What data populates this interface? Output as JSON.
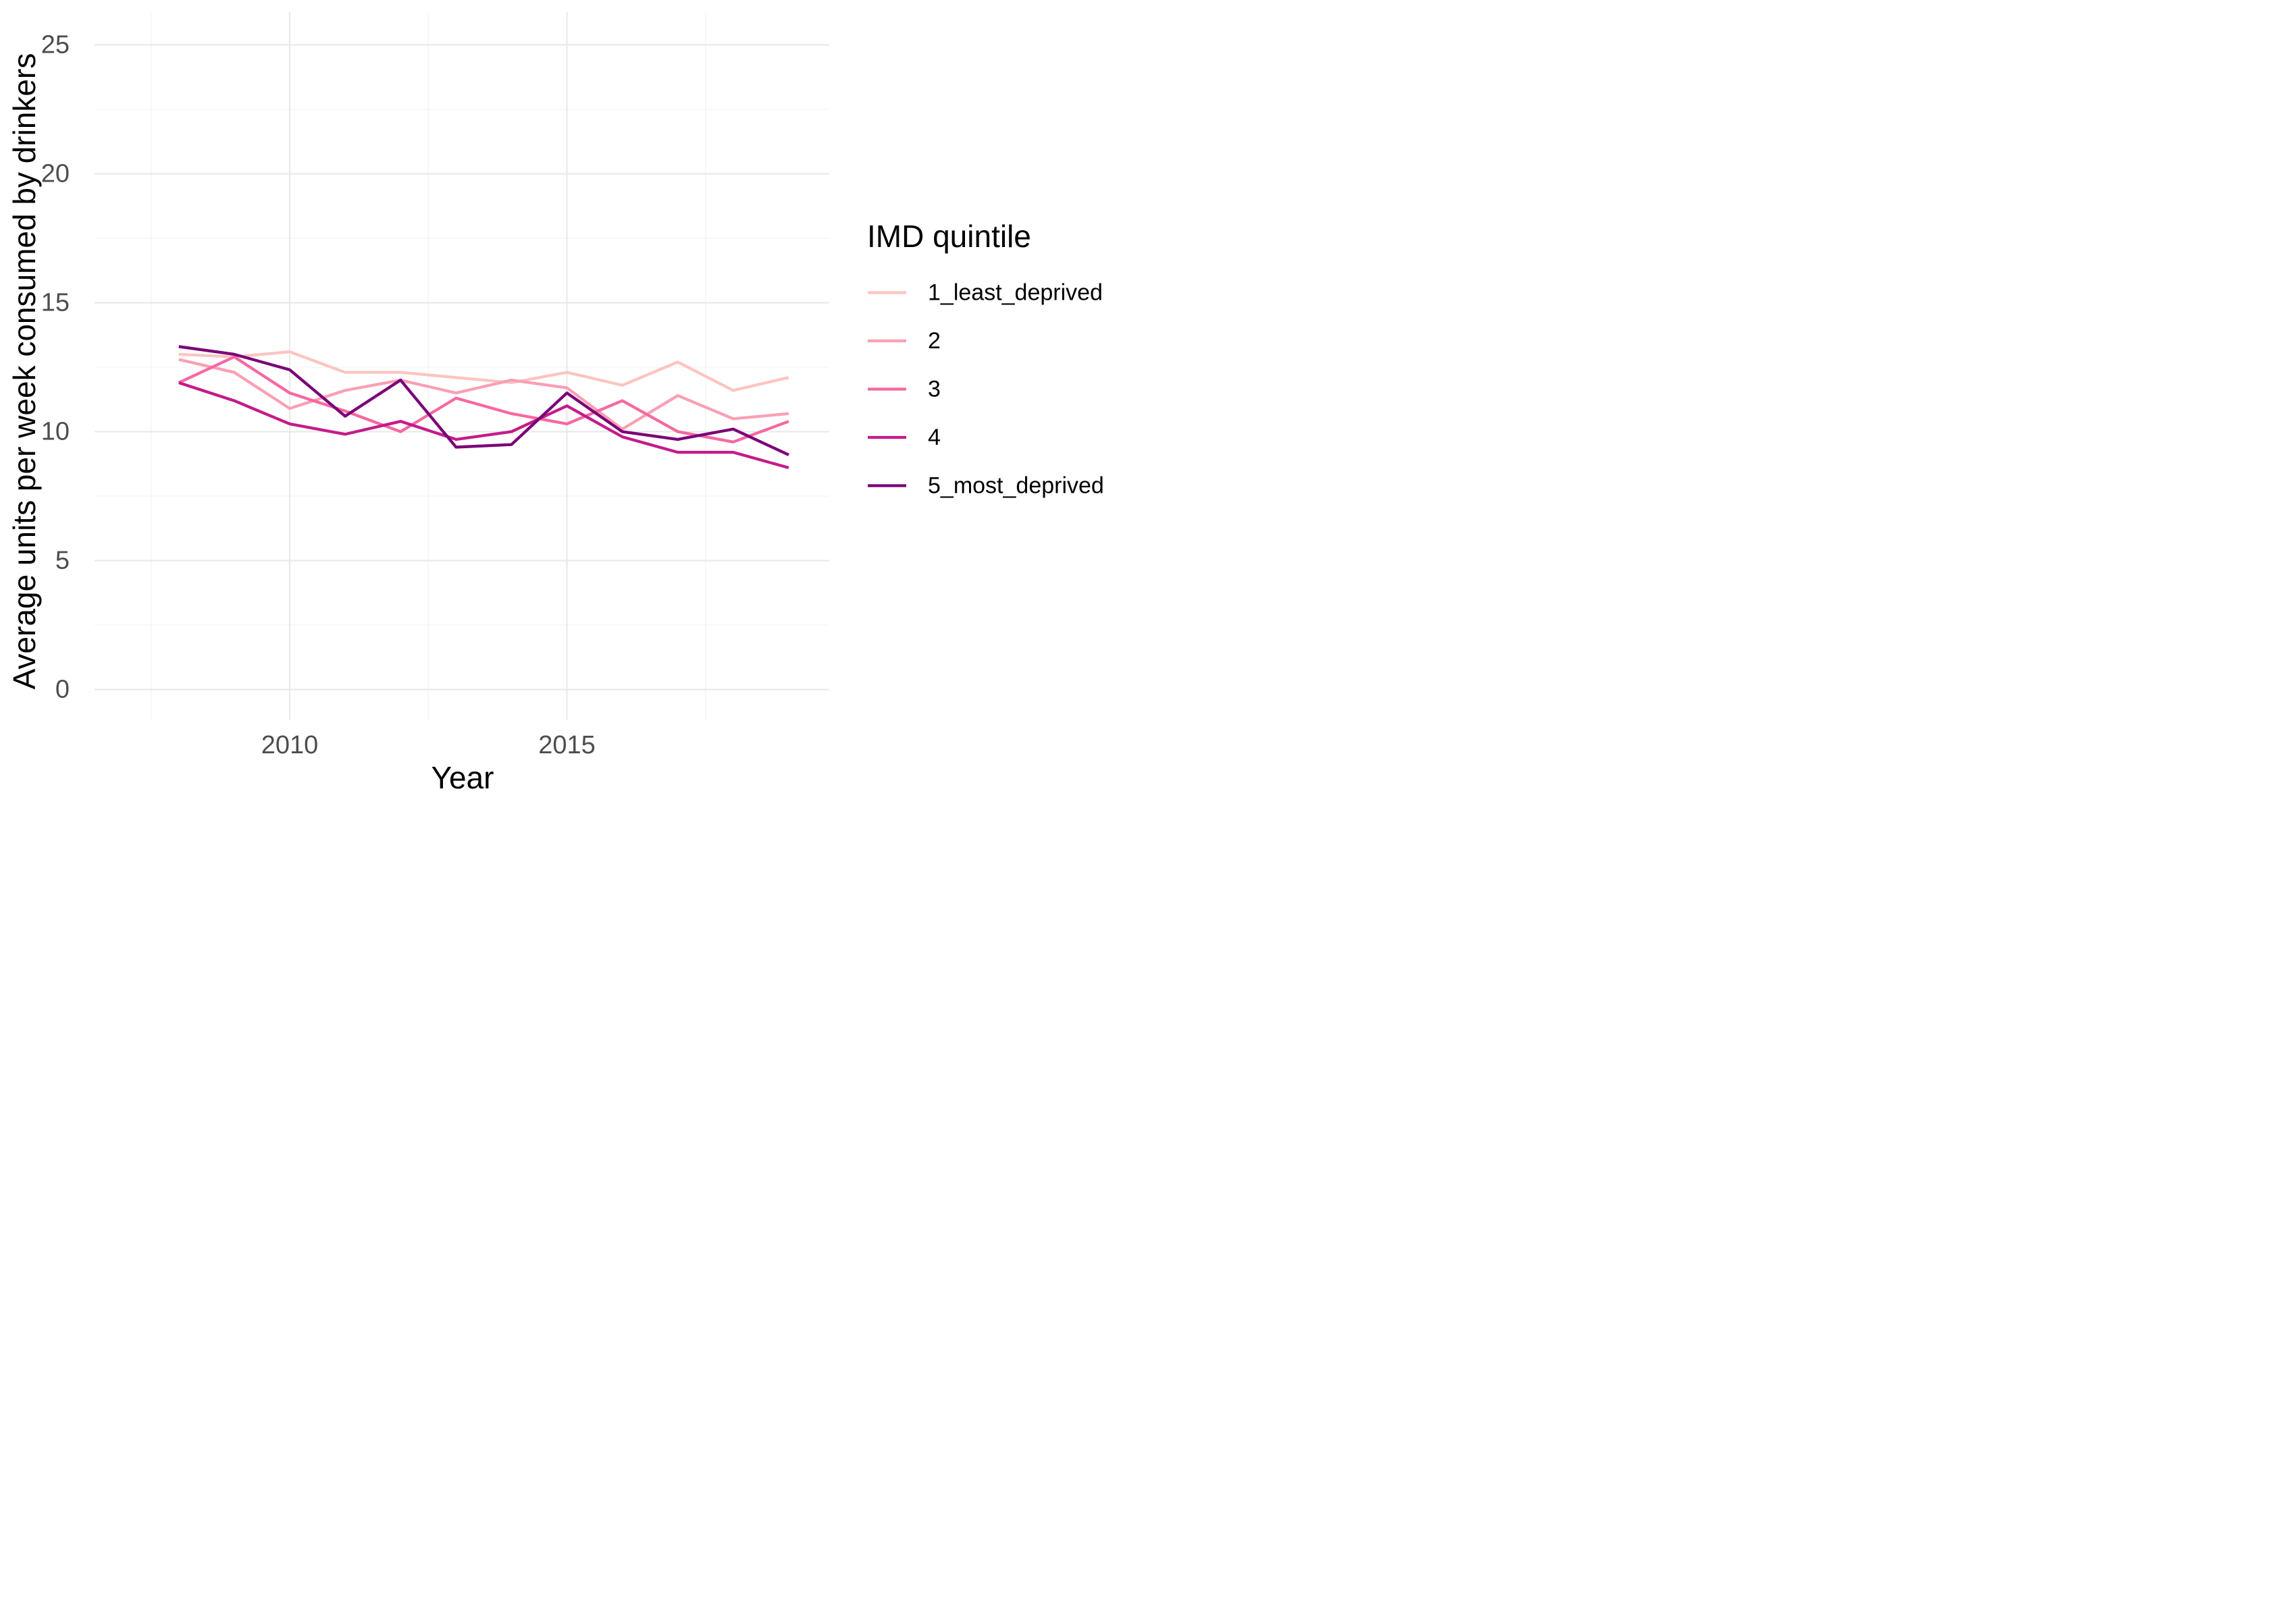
{
  "chart_data": {
    "type": "line",
    "title": "",
    "xlabel": "Year",
    "ylabel": "Average units per week consumed by drinkers",
    "x": [
      2008,
      2009,
      2010,
      2011,
      2012,
      2013,
      2014,
      2015,
      2016,
      2017,
      2018,
      2019
    ],
    "series": [
      {
        "name": "1_least_deprived",
        "color": "#fcc5c0",
        "values": [
          13.0,
          12.9,
          13.1,
          12.3,
          12.3,
          12.1,
          11.9,
          12.3,
          11.8,
          12.7,
          11.6,
          12.1
        ]
      },
      {
        "name": "2",
        "color": "#fa9fb5",
        "values": [
          12.8,
          12.3,
          10.9,
          11.6,
          12.0,
          11.5,
          12.0,
          11.7,
          10.1,
          11.4,
          10.5,
          10.7
        ]
      },
      {
        "name": "3",
        "color": "#f768a1",
        "values": [
          11.9,
          12.9,
          11.5,
          10.8,
          10.0,
          11.3,
          10.7,
          10.3,
          11.2,
          10.0,
          9.6,
          10.4
        ]
      },
      {
        "name": "4",
        "color": "#c51b8a",
        "values": [
          11.9,
          11.2,
          10.3,
          9.9,
          10.4,
          9.7,
          10.0,
          11.0,
          9.8,
          9.2,
          9.2,
          8.6
        ]
      },
      {
        "name": "5_most_deprived",
        "color": "#7a0177",
        "values": [
          13.3,
          13.0,
          12.4,
          10.6,
          12.0,
          9.4,
          9.5,
          11.5,
          10.0,
          9.7,
          10.1,
          9.1
        ]
      }
    ],
    "xlim": [
      2006.48,
      2019.73
    ],
    "ylim": [
      -1.18,
      26.3
    ],
    "xticks": [
      {
        "v": 2010,
        "label": "2010"
      },
      {
        "v": 2015,
        "label": "2015"
      }
    ],
    "yticks": [
      {
        "v": 0,
        "label": "0"
      },
      {
        "v": 5,
        "label": "5"
      },
      {
        "v": 10,
        "label": "10"
      },
      {
        "v": 15,
        "label": "15"
      },
      {
        "v": 20,
        "label": "20"
      },
      {
        "v": 25,
        "label": "25"
      }
    ],
    "minor_xticks": [
      2007.5,
      2012.5,
      2017.5
    ],
    "minor_yticks": [
      2.5,
      7.5,
      12.5,
      17.5,
      22.5
    ],
    "grid": "major and minor, no axis lines, no tick marks",
    "legend": {
      "title": "IMD quintile",
      "position": "right",
      "entries": [
        {
          "label": "1_least_deprived",
          "color": "#fcc5c0"
        },
        {
          "label": "2",
          "color": "#fa9fb5"
        },
        {
          "label": "3",
          "color": "#f768a1"
        },
        {
          "label": "4",
          "color": "#c51b8a"
        },
        {
          "label": "5_most_deprived",
          "color": "#7a0177"
        }
      ]
    },
    "style": {
      "background": "#ffffff",
      "grid_major_color": "#e9e9e9",
      "grid_minor_color": "#f4f4f4",
      "tick_text_color": "#4d4d4d",
      "title_text_color": "#000000",
      "line_width": 4.3
    }
  }
}
